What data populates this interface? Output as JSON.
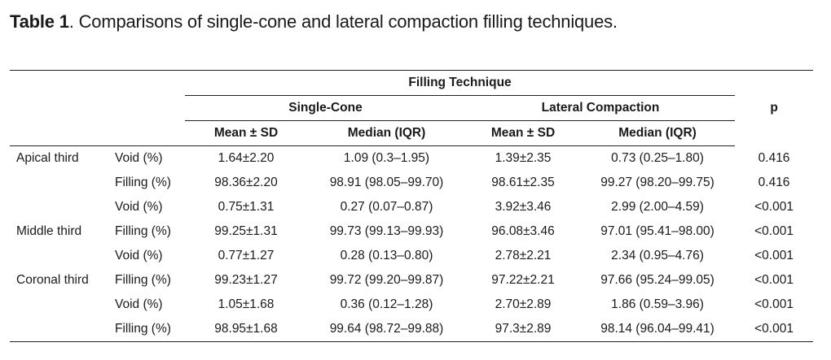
{
  "caption": {
    "label": "Table 1",
    "text": ". Comparisons of single-cone and lateral compaction filling techniques."
  },
  "header": {
    "group": "Filling Technique",
    "single_cone": "Single-Cone",
    "lateral_compaction": "Lateral Compaction",
    "p": "p",
    "mean_sd": "Mean ± SD",
    "median_iqr": "Median (IQR)"
  },
  "rows": [
    {
      "region": "Apical third",
      "measure": "Void (%)",
      "sc_mean": "1.64±2.20",
      "sc_median": "1.09 (0.3–1.95)",
      "lc_mean": "1.39±2.35",
      "lc_median": "0.73 (0.25–1.80)",
      "p": "0.416"
    },
    {
      "region": "",
      "measure": "Filling (%)",
      "sc_mean": "98.36±2.20",
      "sc_median": "98.91 (98.05–99.70)",
      "lc_mean": "98.61±2.35",
      "lc_median": "99.27 (98.20–99.75)",
      "p": "0.416"
    },
    {
      "region": "",
      "measure": "Void (%)",
      "sc_mean": "0.75±1.31",
      "sc_median": "0.27 (0.07–0.87)",
      "lc_mean": "3.92±3.46",
      "lc_median": "2.99 (2.00–4.59)",
      "p": "<0.001"
    },
    {
      "region": "Middle third",
      "measure": "Filling (%)",
      "sc_mean": "99.25±1.31",
      "sc_median": "99.73 (99.13–99.93)",
      "lc_mean": "96.08±3.46",
      "lc_median": "97.01 (95.41–98.00)",
      "p": "<0.001"
    },
    {
      "region": "",
      "measure": "Void (%)",
      "sc_mean": "0.77±1.27",
      "sc_median": "0.28 (0.13–0.80)",
      "lc_mean": "2.78±2.21",
      "lc_median": "2.34 (0.95–4.76)",
      "p": "<0.001"
    },
    {
      "region": "Coronal third",
      "measure": "Filling (%)",
      "sc_mean": "99.23±1.27",
      "sc_median": "99.72 (99.20–99.87)",
      "lc_mean": "97.22±2.21",
      "lc_median": "97.66 (95.24–99.05)",
      "p": "<0.001"
    },
    {
      "region": "",
      "measure": "Void (%)",
      "sc_mean": "1.05±1.68",
      "sc_median": "0.36 (0.12–1.28)",
      "lc_mean": "2.70±2.89",
      "lc_median": "1.86 (0.59–3.96)",
      "p": "<0.001"
    },
    {
      "region": "",
      "measure": "Filling (%)",
      "sc_mean": "98.95±1.68",
      "sc_median": "99.64 (98.72–99.88)",
      "lc_mean": "97.3±2.89",
      "lc_median": "98.14 (96.04–99.41)",
      "p": "<0.001"
    }
  ]
}
